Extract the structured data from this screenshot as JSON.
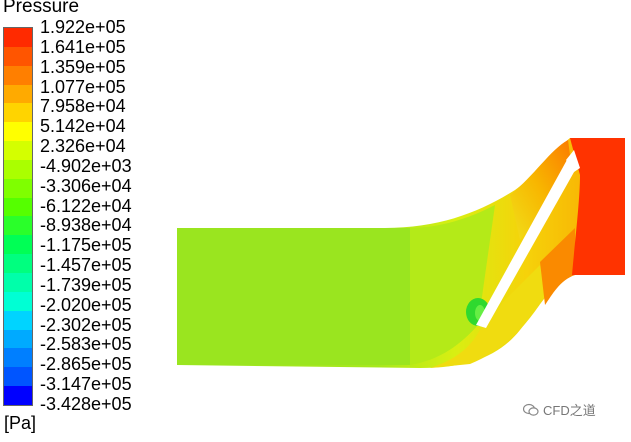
{
  "legend": {
    "title": "Pressure",
    "unit": "[Pa]",
    "labels": [
      "1.922e+05",
      "1.641e+05",
      "1.359e+05",
      "1.077e+05",
      "7.958e+04",
      "5.142e+04",
      "2.326e+04",
      "-4.902e+03",
      "-3.306e+04",
      "-6.122e+04",
      "-8.938e+04",
      "-1.175e+05",
      "-1.457e+05",
      "-1.739e+05",
      "-2.020e+05",
      "-2.302e+05",
      "-2.583e+05",
      "-2.865e+05",
      "-3.147e+05",
      "-3.428e+05"
    ],
    "colors": [
      "#ff2a00",
      "#ff5500",
      "#ff7f00",
      "#ffaa00",
      "#ffd400",
      "#ffff00",
      "#d4ff00",
      "#aaff00",
      "#7fff00",
      "#55ff00",
      "#2aff2a",
      "#00ff55",
      "#00ff7f",
      "#00ffaa",
      "#00ffd4",
      "#00d4ff",
      "#00aaff",
      "#007fff",
      "#0055ff",
      "#0000ff"
    ]
  },
  "contour_colors": {
    "inlet": "#99e61f",
    "outlet": "#ff3300",
    "blade_gap": "#ffffff"
  },
  "watermark": {
    "text": "CFD之道"
  }
}
